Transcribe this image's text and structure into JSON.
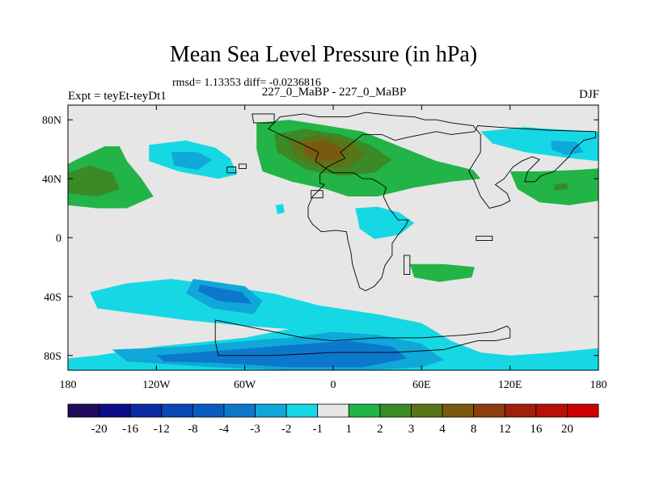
{
  "chart_data": {
    "type": "heatmap",
    "title": "Mean Sea Level Pressure (in hPa)",
    "stats": "rmsd= 1.13353 diff= -0.0236816",
    "left_label": "Expt = teyEt-teyDt1",
    "center_label": "227_0_MaBP - 227_0_MaBP",
    "right_label": "DJF",
    "xlim": [
      -180,
      180
    ],
    "ylim": [
      -90,
      90
    ],
    "x_ticks": [
      {
        "value": -180,
        "label": "180"
      },
      {
        "value": -120,
        "label": "120W"
      },
      {
        "value": -60,
        "label": "60W"
      },
      {
        "value": 0,
        "label": "0"
      },
      {
        "value": 60,
        "label": "60E"
      },
      {
        "value": 120,
        "label": "120E"
      },
      {
        "value": 180,
        "label": "180"
      }
    ],
    "y_ticks": [
      {
        "value": 80,
        "label": "80N"
      },
      {
        "value": 40,
        "label": "40N"
      },
      {
        "value": 0,
        "label": "0"
      },
      {
        "value": -40,
        "label": "40S"
      },
      {
        "value": -80,
        "label": "80S"
      }
    ],
    "colorbar": {
      "labels": [
        "-20",
        "-16",
        "-12",
        "-8",
        "-4",
        "-3",
        "-2",
        "-1",
        "1",
        "2",
        "3",
        "4",
        "8",
        "12",
        "16",
        "20"
      ],
      "colors": [
        "#200a5a",
        "#0d0d8a",
        "#0a2aa6",
        "#0a48b4",
        "#0a5cc2",
        "#0c78cc",
        "#0fa8d8",
        "#16d8e4",
        "#e6e6e6",
        "#22b446",
        "#3a8a28",
        "#5a7418",
        "#7a5a10",
        "#8c3e0c",
        "#a0200c",
        "#b81008",
        "#cc0000"
      ]
    },
    "contour_regions": [
      {
        "name": "europe-high",
        "value": 2,
        "points": [
          [
            -52,
            78
          ],
          [
            -30,
            80
          ],
          [
            -10,
            77
          ],
          [
            20,
            72
          ],
          [
            45,
            62
          ],
          [
            70,
            52
          ],
          [
            95,
            46
          ],
          [
            100,
            40
          ],
          [
            80,
            38
          ],
          [
            55,
            34
          ],
          [
            30,
            28
          ],
          [
            10,
            28
          ],
          [
            -5,
            33
          ],
          [
            -28,
            38
          ],
          [
            -48,
            45
          ],
          [
            -52,
            60
          ]
        ]
      },
      {
        "name": "europe-high",
        "value": 3,
        "points": [
          [
            -40,
            70
          ],
          [
            -20,
            74
          ],
          [
            5,
            70
          ],
          [
            25,
            63
          ],
          [
            40,
            53
          ],
          [
            28,
            44
          ],
          [
            5,
            42
          ],
          [
            -18,
            46
          ],
          [
            -38,
            58
          ]
        ]
      },
      {
        "name": "europe-high",
        "value": 4,
        "points": [
          [
            -30,
            66
          ],
          [
            -10,
            70
          ],
          [
            10,
            66
          ],
          [
            22,
            57
          ],
          [
            12,
            48
          ],
          [
            -8,
            47
          ],
          [
            -26,
            55
          ]
        ]
      },
      {
        "name": "europe-high",
        "value": 8,
        "points": [
          [
            -20,
            64
          ],
          [
            -5,
            66
          ],
          [
            8,
            60
          ],
          [
            4,
            52
          ],
          [
            -10,
            52
          ],
          [
            -20,
            58
          ]
        ]
      },
      {
        "name": "pacific-west-high",
        "value": 2,
        "points": [
          [
            -180,
            50
          ],
          [
            -170,
            55
          ],
          [
            -155,
            62
          ],
          [
            -145,
            62
          ],
          [
            -140,
            52
          ],
          [
            -130,
            40
          ],
          [
            -122,
            28
          ],
          [
            -140,
            20
          ],
          [
            -160,
            20
          ],
          [
            -180,
            22
          ]
        ]
      },
      {
        "name": "pacific-west-high",
        "value": 3,
        "points": [
          [
            -180,
            44
          ],
          [
            -165,
            49
          ],
          [
            -150,
            44
          ],
          [
            -145,
            33
          ],
          [
            -160,
            28
          ],
          [
            -180,
            30
          ]
        ]
      },
      {
        "name": "pacific-east-high",
        "value": 2,
        "points": [
          [
            120,
            45
          ],
          [
            140,
            45
          ],
          [
            165,
            46
          ],
          [
            180,
            47
          ],
          [
            180,
            25
          ],
          [
            160,
            22
          ],
          [
            140,
            24
          ],
          [
            125,
            33
          ]
        ]
      },
      {
        "name": "pacific-east-high",
        "value": 3,
        "points": [
          [
            150,
            36
          ],
          [
            158,
            37
          ],
          [
            160,
            33
          ],
          [
            150,
            32
          ]
        ]
      },
      {
        "name": "africa-high",
        "value": 2,
        "points": [
          [
            52,
            -18
          ],
          [
            75,
            -18
          ],
          [
            96,
            -20
          ],
          [
            94,
            -27
          ],
          [
            72,
            -30
          ],
          [
            55,
            -27
          ]
        ]
      },
      {
        "name": "north-america-low",
        "value": -1,
        "points": [
          [
            -125,
            63
          ],
          [
            -100,
            66
          ],
          [
            -80,
            61
          ],
          [
            -70,
            54
          ],
          [
            -65,
            43
          ],
          [
            -78,
            40
          ],
          [
            -105,
            45
          ],
          [
            -125,
            52
          ]
        ]
      },
      {
        "name": "north-america-low",
        "value": -2,
        "points": [
          [
            -110,
            58
          ],
          [
            -92,
            58
          ],
          [
            -82,
            53
          ],
          [
            -92,
            46
          ],
          [
            -108,
            49
          ]
        ]
      },
      {
        "name": "siberia-low",
        "value": -1,
        "points": [
          [
            100,
            72
          ],
          [
            130,
            75
          ],
          [
            160,
            73
          ],
          [
            180,
            72
          ],
          [
            180,
            52
          ],
          [
            160,
            54
          ],
          [
            130,
            58
          ],
          [
            108,
            64
          ]
        ]
      },
      {
        "name": "siberia-low",
        "value": -2,
        "points": [
          [
            148,
            66
          ],
          [
            165,
            65
          ],
          [
            170,
            58
          ],
          [
            158,
            56
          ],
          [
            148,
            60
          ]
        ]
      },
      {
        "name": "arabia-low",
        "value": -1,
        "points": [
          [
            15,
            20
          ],
          [
            30,
            21
          ],
          [
            45,
            17
          ],
          [
            55,
            10
          ],
          [
            45,
            2
          ],
          [
            28,
            -1
          ],
          [
            18,
            6
          ]
        ]
      },
      {
        "name": "atlantic-low",
        "value": -1,
        "points": [
          [
            -39,
            22
          ],
          [
            -34,
            23
          ],
          [
            -33,
            17
          ],
          [
            -38,
            16
          ]
        ]
      },
      {
        "name": "southern-ocean-low",
        "value": -1,
        "points": [
          [
            -180,
            -90
          ],
          [
            180,
            -90
          ],
          [
            180,
            -75
          ],
          [
            150,
            -78
          ],
          [
            120,
            -80
          ],
          [
            100,
            -78
          ],
          [
            80,
            -70
          ],
          [
            60,
            -58
          ],
          [
            30,
            -52
          ],
          [
            -10,
            -46
          ],
          [
            -40,
            -38
          ],
          [
            -80,
            -32
          ],
          [
            -110,
            -28
          ],
          [
            -140,
            -31
          ],
          [
            -165,
            -37
          ],
          [
            -160,
            -48
          ],
          [
            -130,
            -52
          ],
          [
            -100,
            -56
          ],
          [
            -60,
            -60
          ],
          [
            -30,
            -62
          ],
          [
            -60,
            -68
          ],
          [
            -120,
            -74
          ],
          [
            -160,
            -80
          ],
          [
            -180,
            -82
          ]
        ]
      },
      {
        "name": "southern-ocean-low",
        "value": -2,
        "points": [
          [
            -150,
            -76
          ],
          [
            -100,
            -74
          ],
          [
            -60,
            -70
          ],
          [
            -30,
            -68
          ],
          [
            0,
            -64
          ],
          [
            30,
            -66
          ],
          [
            60,
            -72
          ],
          [
            75,
            -83
          ],
          [
            60,
            -88
          ],
          [
            20,
            -90
          ],
          [
            -30,
            -90
          ],
          [
            -80,
            -88
          ],
          [
            -140,
            -84
          ]
        ]
      },
      {
        "name": "southern-ocean-low",
        "value": -3,
        "points": [
          [
            -120,
            -80
          ],
          [
            -80,
            -77
          ],
          [
            -30,
            -73
          ],
          [
            10,
            -70
          ],
          [
            40,
            -74
          ],
          [
            50,
            -82
          ],
          [
            20,
            -88
          ],
          [
            -30,
            -88
          ],
          [
            -80,
            -85
          ],
          [
            -115,
            -84
          ]
        ]
      },
      {
        "name": "south-pacific-low",
        "value": -2,
        "points": [
          [
            -95,
            -28
          ],
          [
            -60,
            -33
          ],
          [
            -48,
            -43
          ],
          [
            -54,
            -52
          ],
          [
            -82,
            -48
          ],
          [
            -100,
            -38
          ]
        ]
      },
      {
        "name": "south-pacific-low",
        "value": -3,
        "points": [
          [
            -90,
            -32
          ],
          [
            -62,
            -37
          ],
          [
            -55,
            -45
          ],
          [
            -78,
            -43
          ],
          [
            -92,
            -36
          ]
        ]
      }
    ],
    "coastline_outline": [
      [
        -36,
        82
      ],
      [
        -20,
        84
      ],
      [
        -10,
        82
      ],
      [
        10,
        82
      ],
      [
        22,
        85
      ],
      [
        40,
        83
      ],
      [
        55,
        82
      ],
      [
        62,
        80
      ],
      [
        70,
        80
      ],
      [
        80,
        78
      ],
      [
        95,
        76
      ],
      [
        100,
        70
      ],
      [
        100,
        58
      ],
      [
        95,
        50
      ],
      [
        92,
        45
      ],
      [
        96,
        38
      ],
      [
        100,
        28
      ],
      [
        103,
        24
      ],
      [
        106,
        20
      ],
      [
        114,
        22
      ],
      [
        120,
        25
      ],
      [
        118,
        30
      ],
      [
        110,
        36
      ],
      [
        116,
        40
      ],
      [
        122,
        48
      ],
      [
        128,
        52
      ],
      [
        135,
        55
      ],
      [
        140,
        53
      ],
      [
        132,
        45
      ],
      [
        130,
        38
      ],
      [
        137,
        38
      ],
      [
        141,
        42
      ],
      [
        150,
        45
      ],
      [
        160,
        55
      ],
      [
        163,
        60
      ],
      [
        170,
        66
      ],
      [
        178,
        68
      ],
      [
        178,
        72
      ],
      [
        145,
        73
      ],
      [
        112,
        75
      ],
      [
        98,
        76
      ],
      [
        96,
        72
      ],
      [
        80,
        70
      ],
      [
        70,
        72
      ],
      [
        60,
        70
      ],
      [
        50,
        68
      ],
      [
        42,
        66
      ],
      [
        33,
        70
      ],
      [
        20,
        70
      ],
      [
        15,
        66
      ],
      [
        10,
        62
      ],
      [
        5,
        58
      ],
      [
        8,
        54
      ],
      [
        4,
        52
      ],
      [
        -4,
        48
      ],
      [
        -9,
        43
      ],
      [
        -9,
        37
      ],
      [
        -6,
        36
      ],
      [
        -14,
        28
      ],
      [
        -17,
        21
      ],
      [
        -17,
        14
      ],
      [
        -14,
        9
      ],
      [
        -8,
        4
      ],
      [
        2,
        5
      ],
      [
        9,
        4
      ],
      [
        10,
        -2
      ],
      [
        12,
        -10
      ],
      [
        13,
        -18
      ],
      [
        16,
        -28
      ],
      [
        18,
        -34
      ],
      [
        22,
        -36
      ],
      [
        28,
        -33
      ],
      [
        33,
        -27
      ],
      [
        35,
        -19
      ],
      [
        40,
        -12
      ],
      [
        40,
        -4
      ],
      [
        44,
        2
      ],
      [
        49,
        8
      ],
      [
        51,
        12
      ],
      [
        44,
        12
      ],
      [
        38,
        20
      ],
      [
        34,
        28
      ],
      [
        36,
        34
      ],
      [
        30,
        38
      ],
      [
        26,
        40
      ],
      [
        20,
        40
      ],
      [
        14,
        44
      ],
      [
        8,
        44
      ],
      [
        0,
        44
      ],
      [
        -5,
        47
      ],
      [
        -12,
        52
      ],
      [
        -10,
        58
      ],
      [
        -22,
        64
      ],
      [
        -36,
        70
      ],
      [
        -44,
        74
      ],
      [
        -36,
        82
      ]
    ],
    "antarctica_outline": [
      [
        -80,
        -56
      ],
      [
        -60,
        -60
      ],
      [
        -40,
        -64
      ],
      [
        -20,
        -68
      ],
      [
        0,
        -70
      ],
      [
        30,
        -68
      ],
      [
        60,
        -68
      ],
      [
        90,
        -66
      ],
      [
        108,
        -64
      ],
      [
        118,
        -60
      ],
      [
        120,
        -62
      ],
      [
        120,
        -68
      ],
      [
        110,
        -70
      ],
      [
        98,
        -70
      ],
      [
        90,
        -72
      ],
      [
        75,
        -76
      ],
      [
        40,
        -78
      ],
      [
        0,
        -78
      ],
      [
        -40,
        -80
      ],
      [
        -78,
        -80
      ],
      [
        -80,
        -70
      ],
      [
        -80,
        -56
      ]
    ],
    "island_outlines": [
      [
        [
          -55,
          84
        ],
        [
          -40,
          84
        ],
        [
          -40,
          78
        ],
        [
          -54,
          78
        ]
      ],
      [
        [
          -15,
          32
        ],
        [
          -7,
          32
        ],
        [
          -7,
          27
        ],
        [
          -15,
          27
        ]
      ],
      [
        [
          97,
          1
        ],
        [
          108,
          1
        ],
        [
          108,
          -2
        ],
        [
          97,
          -2
        ]
      ],
      [
        [
          -72,
          48
        ],
        [
          -66,
          48
        ],
        [
          -66,
          44
        ],
        [
          -72,
          44
        ]
      ],
      [
        [
          -64,
          50
        ],
        [
          -59,
          50
        ],
        [
          -59,
          47
        ],
        [
          -64,
          47
        ]
      ],
      [
        [
          48,
          -12
        ],
        [
          52,
          -12
        ],
        [
          52,
          -25
        ],
        [
          48,
          -25
        ]
      ]
    ]
  }
}
